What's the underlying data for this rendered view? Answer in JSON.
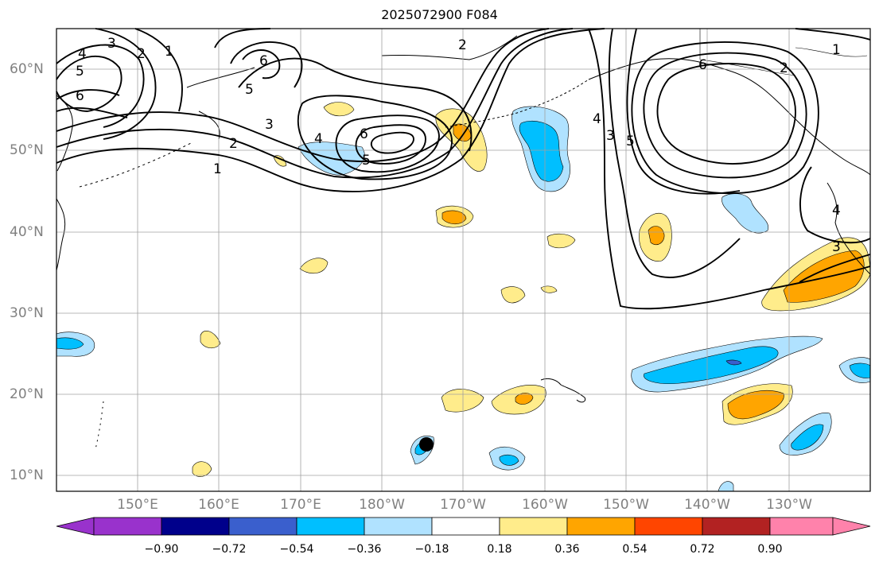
{
  "title": "2025072900 F084",
  "lat_labels": [
    "60°N",
    "50°N",
    "40°N",
    "30°N",
    "20°N",
    "10°N"
  ],
  "lon_labels": [
    "150°E",
    "160°E",
    "170°E",
    "180°W",
    "170°W",
    "160°W",
    "150°W",
    "140°W",
    "130°W"
  ],
  "colorbar": {
    "labels": [
      "−0.90",
      "−0.72",
      "−0.54",
      "−0.36",
      "−0.18",
      "0.18",
      "0.36",
      "0.54",
      "0.72",
      "0.90"
    ],
    "colors": [
      "#9932cc",
      "#00008b",
      "#3a5fcd",
      "#00bfff",
      "#b0e2ff",
      "#ffffff",
      "#ffec8b",
      "#ffa500",
      "#ff4500",
      "#b22222",
      "#ff82ab"
    ]
  },
  "contour_labels": [
    "1",
    "2",
    "3",
    "4",
    "5",
    "6"
  ],
  "colors": {
    "grid": "#a0a0a0",
    "contour": "#000000",
    "axis_label": "#808080"
  },
  "symbols": {
    "storm_center": "filled-circle"
  }
}
